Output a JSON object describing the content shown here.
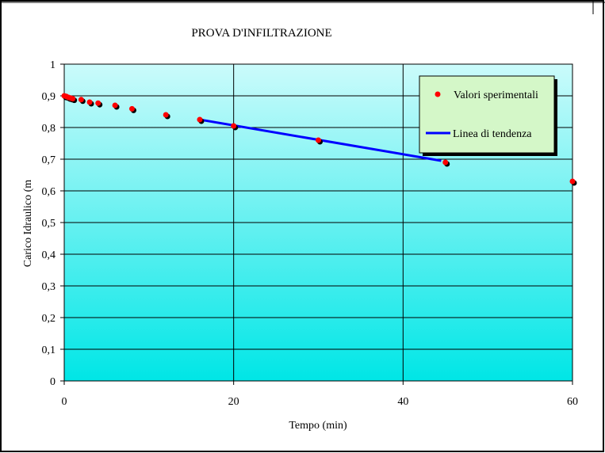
{
  "chart_data": {
    "type": "scatter",
    "title": "PROVA D'INFILTRAZIONE",
    "xlabel": "Tempo (min)",
    "ylabel": "Carico Idraulico (m",
    "xlim": [
      0,
      60
    ],
    "ylim": [
      0,
      1
    ],
    "x_ticks": [
      "0",
      "20",
      "40",
      "60"
    ],
    "y_ticks": [
      "0",
      "0,1",
      "0,2",
      "0,3",
      "0,4",
      "0,5",
      "0,6",
      "0,7",
      "0,8",
      "0,9",
      "1"
    ],
    "grid": true,
    "legend_position": "top-right",
    "series": [
      {
        "name": "Valori sperimentali",
        "kind": "points",
        "color": "#ff0000",
        "points": [
          [
            0,
            0.9
          ],
          [
            0.25,
            0.898
          ],
          [
            0.5,
            0.895
          ],
          [
            0.75,
            0.893
          ],
          [
            1,
            0.891
          ],
          [
            2,
            0.888
          ],
          [
            3,
            0.88
          ],
          [
            4,
            0.877
          ],
          [
            6,
            0.87
          ],
          [
            8,
            0.859
          ],
          [
            12,
            0.84
          ],
          [
            16,
            0.825
          ],
          [
            20,
            0.805
          ],
          [
            30,
            0.76
          ],
          [
            45,
            0.69
          ],
          [
            60,
            0.63
          ]
        ]
      },
      {
        "name": "Linea di tendenza",
        "kind": "line",
        "color": "#0000ff",
        "points": [
          [
            16,
            0.825
          ],
          [
            44.5,
            0.695
          ]
        ]
      }
    ],
    "colors": {
      "plot_top": "#cbfbfb",
      "plot_bottom": "#00e6e6",
      "legend_bg": "#d4f7c8",
      "marker_shadow": "#000000"
    }
  }
}
